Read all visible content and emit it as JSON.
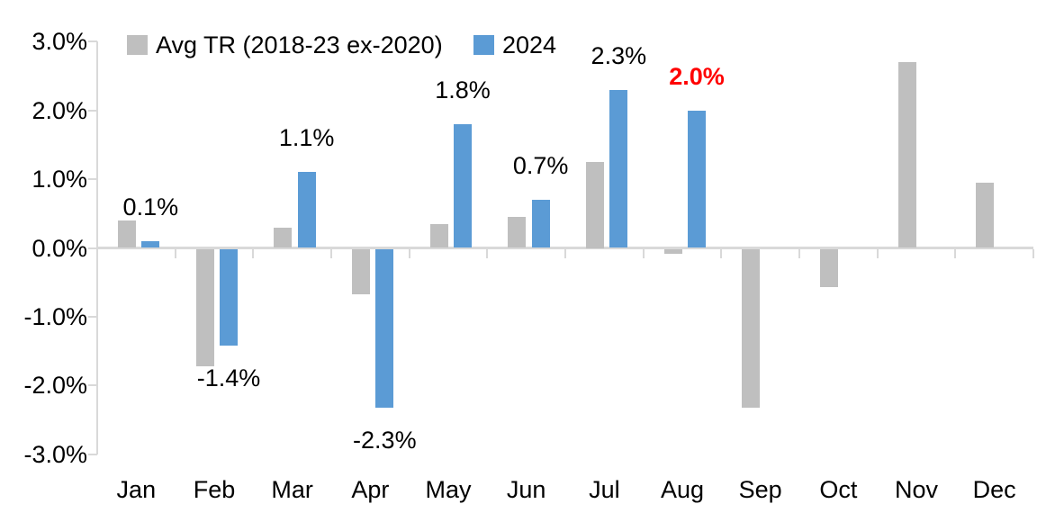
{
  "colors": {
    "avg_series": "#BFBFBF",
    "series_2024": "#5B9BD5",
    "highlight_label": "#FF0000",
    "axis": "#D9D9D9",
    "text": "#000000"
  },
  "legend": {
    "avg_label": "Avg TR (2018-23 ex-2020)",
    "y2024_label": "2024"
  },
  "chart_data": {
    "type": "bar",
    "title": "",
    "xlabel": "",
    "ylabel": "",
    "categories": [
      "Jan",
      "Feb",
      "Mar",
      "Apr",
      "May",
      "Jun",
      "Jul",
      "Aug",
      "Sep",
      "Oct",
      "Nov",
      "Dec"
    ],
    "series": [
      {
        "name": "Avg TR (2018-23 ex-2020)",
        "color": "#BFBFBF",
        "values": [
          0.4,
          -1.7,
          0.3,
          -0.65,
          0.35,
          0.45,
          1.25,
          -0.06,
          -2.3,
          -0.55,
          2.7,
          0.95
        ]
      },
      {
        "name": "2024",
        "color": "#5B9BD5",
        "values": [
          0.1,
          -1.4,
          1.1,
          -2.3,
          1.8,
          0.7,
          2.3,
          2.0,
          null,
          null,
          null,
          null
        ],
        "data_labels": [
          {
            "text": "0.1%"
          },
          {
            "text": "-1.4%"
          },
          {
            "text": "1.1%"
          },
          {
            "text": "-2.3%"
          },
          {
            "text": "1.8%"
          },
          {
            "text": "0.7%"
          },
          {
            "text": "2.3%"
          },
          {
            "text": "2.0%",
            "color": "#FF0000",
            "bold": true
          }
        ]
      }
    ],
    "y_ticks": [
      "3.0%",
      "2.0%",
      "1.0%",
      "0.0%",
      "-1.0%",
      "-2.0%",
      "-3.0%"
    ],
    "ylim": [
      -3.0,
      3.0
    ],
    "grid": false,
    "legend_position": "top"
  }
}
